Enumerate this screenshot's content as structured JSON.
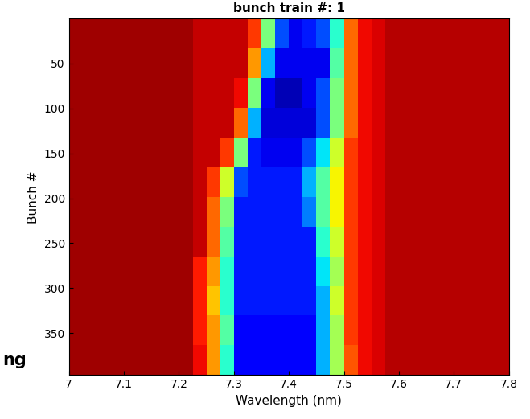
{
  "chart_data": {
    "type": "heatmap",
    "title": "bunch train #: 1",
    "xlabel": "Wavelength (nm)",
    "ylabel": "Bunch #",
    "annotation": "ng",
    "xlim": [
      7,
      7.8
    ],
    "xticks": [
      7,
      7.1,
      7.2,
      7.3,
      7.4,
      7.5,
      7.6,
      7.7,
      7.8
    ],
    "ylim": [
      396.5,
      0.5
    ],
    "yticks": [
      50,
      100,
      150,
      200,
      250,
      300,
      350
    ],
    "x_edges": [
      7.0,
      7.025,
      7.05,
      7.075,
      7.1,
      7.125,
      7.15,
      7.175,
      7.2,
      7.225,
      7.25,
      7.275,
      7.3,
      7.325,
      7.35,
      7.375,
      7.4,
      7.425,
      7.45,
      7.475,
      7.5,
      7.525,
      7.55,
      7.575,
      7.6,
      7.625,
      7.65,
      7.675,
      7.7,
      7.725,
      7.75,
      7.775,
      7.8
    ],
    "y_edges": [
      0.5,
      33.5,
      66.5,
      99.5,
      132.5,
      165.5,
      198.5,
      231.5,
      264.5,
      297.5,
      330.5,
      363.5,
      396.5
    ],
    "color_range": [
      0,
      1
    ],
    "cells": [
      [
        0.03,
        0.03,
        0.03,
        0.03,
        0.03,
        0.03,
        0.03,
        0.03,
        0.03,
        0.06,
        0.06,
        0.06,
        0.06,
        0.15,
        0.5,
        0.8,
        0.9,
        0.85,
        0.8,
        0.6,
        0.2,
        0.1,
        0.08,
        0.05,
        0.05,
        0.05,
        0.05,
        0.05,
        0.05,
        0.05,
        0.05,
        0.05
      ],
      [
        0.03,
        0.03,
        0.03,
        0.03,
        0.03,
        0.03,
        0.03,
        0.03,
        0.03,
        0.06,
        0.06,
        0.06,
        0.06,
        0.25,
        0.7,
        0.9,
        0.9,
        0.9,
        0.9,
        0.55,
        0.2,
        0.1,
        0.08,
        0.05,
        0.05,
        0.05,
        0.05,
        0.05,
        0.05,
        0.05,
        0.05,
        0.05
      ],
      [
        0.03,
        0.03,
        0.03,
        0.03,
        0.03,
        0.03,
        0.03,
        0.03,
        0.03,
        0.06,
        0.06,
        0.06,
        0.1,
        0.5,
        0.9,
        0.95,
        0.95,
        0.9,
        0.8,
        0.5,
        0.2,
        0.1,
        0.08,
        0.05,
        0.05,
        0.05,
        0.05,
        0.05,
        0.05,
        0.05,
        0.05,
        0.05
      ],
      [
        0.03,
        0.03,
        0.03,
        0.03,
        0.03,
        0.03,
        0.03,
        0.03,
        0.03,
        0.06,
        0.06,
        0.06,
        0.2,
        0.7,
        0.92,
        0.92,
        0.92,
        0.92,
        0.8,
        0.5,
        0.2,
        0.1,
        0.08,
        0.05,
        0.05,
        0.05,
        0.05,
        0.05,
        0.05,
        0.05,
        0.05,
        0.05
      ],
      [
        0.03,
        0.03,
        0.03,
        0.03,
        0.03,
        0.03,
        0.03,
        0.03,
        0.03,
        0.06,
        0.06,
        0.15,
        0.5,
        0.85,
        0.9,
        0.9,
        0.9,
        0.8,
        0.65,
        0.4,
        0.15,
        0.1,
        0.08,
        0.05,
        0.05,
        0.05,
        0.05,
        0.05,
        0.05,
        0.05,
        0.05,
        0.05
      ],
      [
        0.03,
        0.03,
        0.03,
        0.03,
        0.03,
        0.03,
        0.03,
        0.03,
        0.03,
        0.06,
        0.15,
        0.4,
        0.8,
        0.85,
        0.85,
        0.85,
        0.85,
        0.7,
        0.55,
        0.35,
        0.15,
        0.1,
        0.08,
        0.05,
        0.05,
        0.05,
        0.05,
        0.05,
        0.05,
        0.05,
        0.05,
        0.05
      ],
      [
        0.03,
        0.03,
        0.03,
        0.03,
        0.03,
        0.03,
        0.03,
        0.03,
        0.03,
        0.06,
        0.2,
        0.5,
        0.85,
        0.85,
        0.85,
        0.85,
        0.85,
        0.75,
        0.55,
        0.35,
        0.15,
        0.1,
        0.08,
        0.05,
        0.05,
        0.05,
        0.05,
        0.05,
        0.05,
        0.05,
        0.05,
        0.05
      ],
      [
        0.03,
        0.03,
        0.03,
        0.03,
        0.03,
        0.03,
        0.03,
        0.03,
        0.03,
        0.06,
        0.2,
        0.55,
        0.85,
        0.85,
        0.85,
        0.85,
        0.85,
        0.85,
        0.6,
        0.4,
        0.15,
        0.1,
        0.08,
        0.05,
        0.05,
        0.05,
        0.05,
        0.05,
        0.05,
        0.05,
        0.05,
        0.05
      ],
      [
        0.03,
        0.03,
        0.03,
        0.03,
        0.03,
        0.03,
        0.03,
        0.03,
        0.03,
        0.12,
        0.25,
        0.6,
        0.85,
        0.85,
        0.85,
        0.85,
        0.85,
        0.85,
        0.65,
        0.45,
        0.15,
        0.1,
        0.08,
        0.05,
        0.05,
        0.05,
        0.05,
        0.05,
        0.05,
        0.05,
        0.05,
        0.05
      ],
      [
        0.03,
        0.03,
        0.03,
        0.03,
        0.03,
        0.03,
        0.03,
        0.03,
        0.03,
        0.12,
        0.3,
        0.6,
        0.85,
        0.85,
        0.85,
        0.85,
        0.85,
        0.85,
        0.7,
        0.4,
        0.15,
        0.1,
        0.08,
        0.05,
        0.05,
        0.05,
        0.05,
        0.05,
        0.05,
        0.05,
        0.05,
        0.05
      ],
      [
        0.03,
        0.03,
        0.03,
        0.03,
        0.03,
        0.03,
        0.03,
        0.03,
        0.03,
        0.12,
        0.25,
        0.55,
        0.88,
        0.88,
        0.88,
        0.88,
        0.88,
        0.88,
        0.7,
        0.45,
        0.15,
        0.1,
        0.08,
        0.05,
        0.05,
        0.05,
        0.05,
        0.05,
        0.05,
        0.05,
        0.05,
        0.05
      ],
      [
        0.03,
        0.03,
        0.03,
        0.03,
        0.03,
        0.03,
        0.03,
        0.03,
        0.03,
        0.1,
        0.25,
        0.6,
        0.88,
        0.88,
        0.88,
        0.88,
        0.88,
        0.88,
        0.7,
        0.45,
        0.18,
        0.1,
        0.08,
        0.05,
        0.05,
        0.05,
        0.05,
        0.05,
        0.05,
        0.05,
        0.05,
        0.05
      ]
    ]
  }
}
